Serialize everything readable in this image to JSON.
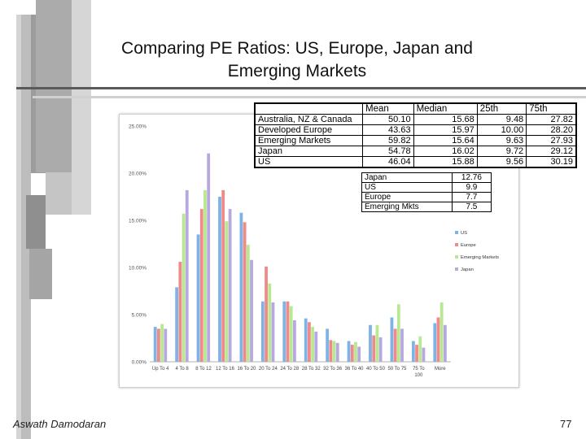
{
  "slide": {
    "title_line1": "Comparing PE Ratios: US, Europe, Japan and",
    "title_line2": "Emerging Markets",
    "author": "Aswath Damodaran",
    "page_number": "77"
  },
  "summary_table": {
    "headers": [
      "",
      "Mean",
      "Median",
      "25th",
      "75th"
    ],
    "rows": [
      [
        "Australia, NZ & Canada",
        "50.10",
        "15.68",
        "9.48",
        "27.82"
      ],
      [
        "Developed Europe",
        "43.63",
        "15.97",
        "10.00",
        "28.20"
      ],
      [
        "Emerging Markets",
        "59.82",
        "15.64",
        "9.63",
        "27.93"
      ],
      [
        "Japan",
        "54.78",
        "16.02",
        "9.72",
        "29.12"
      ],
      [
        "US",
        "46.04",
        "15.88",
        "9.56",
        "30.19"
      ]
    ]
  },
  "median_table": {
    "rows": [
      [
        "Japan",
        "12.76"
      ],
      [
        "US",
        "9.9"
      ],
      [
        "Europe",
        "7.7"
      ],
      [
        "Emerging Mkts",
        "7.5"
      ]
    ]
  },
  "chart_data": {
    "type": "bar",
    "categories": [
      "Up To 4",
      "4 To 8",
      "8 To 12",
      "12 To 16",
      "16 To 20",
      "20 To 24",
      "24 To 28",
      "28 To 32",
      "32 To 36",
      "36 To 40",
      "40 To 50",
      "50 To 75",
      "75 To 100",
      "More"
    ],
    "series": [
      {
        "name": "US",
        "color": "#7fb3e6",
        "values": [
          3.7,
          7.9,
          13.5,
          17.5,
          15.8,
          6.4,
          6.4,
          4.6,
          3.5,
          2.2,
          3.9,
          4.7,
          2.2,
          4.1
        ]
      },
      {
        "name": "Europe",
        "color": "#f08a8a",
        "values": [
          3.5,
          10.6,
          16.2,
          18.2,
          14.8,
          10.1,
          6.4,
          4.2,
          2.3,
          1.8,
          2.8,
          3.5,
          1.8,
          4.7
        ]
      },
      {
        "name": "Emerging Markets",
        "color": "#b8e88f",
        "values": [
          4.0,
          15.7,
          18.2,
          14.9,
          12.4,
          8.3,
          5.9,
          3.7,
          2.2,
          2.1,
          3.9,
          6.1,
          2.7,
          6.3
        ]
      },
      {
        "name": "Japan",
        "color": "#b7a8e0",
        "values": [
          3.5,
          18.2,
          22.1,
          16.2,
          10.8,
          6.3,
          4.4,
          3.2,
          2.0,
          1.6,
          2.6,
          3.5,
          1.5,
          3.9
        ]
      }
    ],
    "ylim": [
      0,
      25
    ],
    "yticks": [
      "0.00%",
      "5.00%",
      "10.00%",
      "15.00%",
      "20.00%",
      "25.00%"
    ],
    "legend_position": "right",
    "grid": false
  }
}
